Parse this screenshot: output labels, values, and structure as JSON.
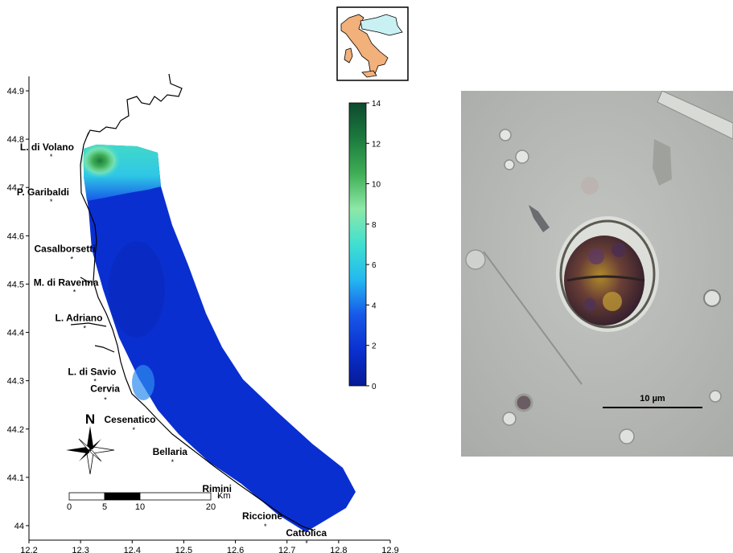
{
  "map": {
    "x_axis": {
      "min": 12.2,
      "max": 12.9,
      "ticks": [
        "12.2",
        "12.3",
        "12.4",
        "12.5",
        "12.6",
        "12.7",
        "12.8",
        "12.9"
      ]
    },
    "y_axis": {
      "min": 43.97,
      "max": 44.93,
      "ticks": [
        "44",
        "44.1",
        "44.2",
        "44.3",
        "44.4",
        "44.5",
        "44.6",
        "44.7",
        "44.8",
        "44.9"
      ]
    },
    "towns": [
      {
        "name": "L. di Volano",
        "lon": 12.245,
        "lat": 44.765
      },
      {
        "name": "P. Garibaldi",
        "lon": 12.245,
        "lat": 44.672
      },
      {
        "name": "Casalborsetti",
        "lon": 12.285,
        "lat": 44.553
      },
      {
        "name": "M. di Ravenna",
        "lon": 12.29,
        "lat": 44.485
      },
      {
        "name": "L. Adriano",
        "lon": 12.31,
        "lat": 44.41
      },
      {
        "name": "L. di Savio",
        "lon": 12.33,
        "lat": 44.3
      },
      {
        "name": "Cervia",
        "lon": 12.35,
        "lat": 44.262
      },
      {
        "name": "Cesenatico",
        "lon": 12.405,
        "lat": 44.2
      },
      {
        "name": "Bellaria",
        "lon": 12.48,
        "lat": 44.133
      },
      {
        "name": "Rimini",
        "lon": 12.57,
        "lat": 44.058
      },
      {
        "name": "Riccione",
        "lon": 12.66,
        "lat": 44.0
      },
      {
        "name": "Cattolica",
        "lon": 12.74,
        "lat": 43.965
      }
    ],
    "colorbar": {
      "ticks": [
        "0",
        "2",
        "4",
        "6",
        "8",
        "10",
        "12",
        "14"
      ],
      "min": 0,
      "max": 14,
      "colors": [
        "#061a96",
        "#0a30d0",
        "#1758e8",
        "#23b8f0",
        "#3fe0cf",
        "#8de8a8",
        "#3fae56",
        "#1c7a3e",
        "#0d4a2e"
      ]
    },
    "north_label": "N",
    "scale_bar": {
      "ticks": [
        "0",
        "5",
        "10",
        "20"
      ],
      "unit": "Km"
    }
  },
  "micrograph": {
    "scale_label": "10 µm"
  }
}
